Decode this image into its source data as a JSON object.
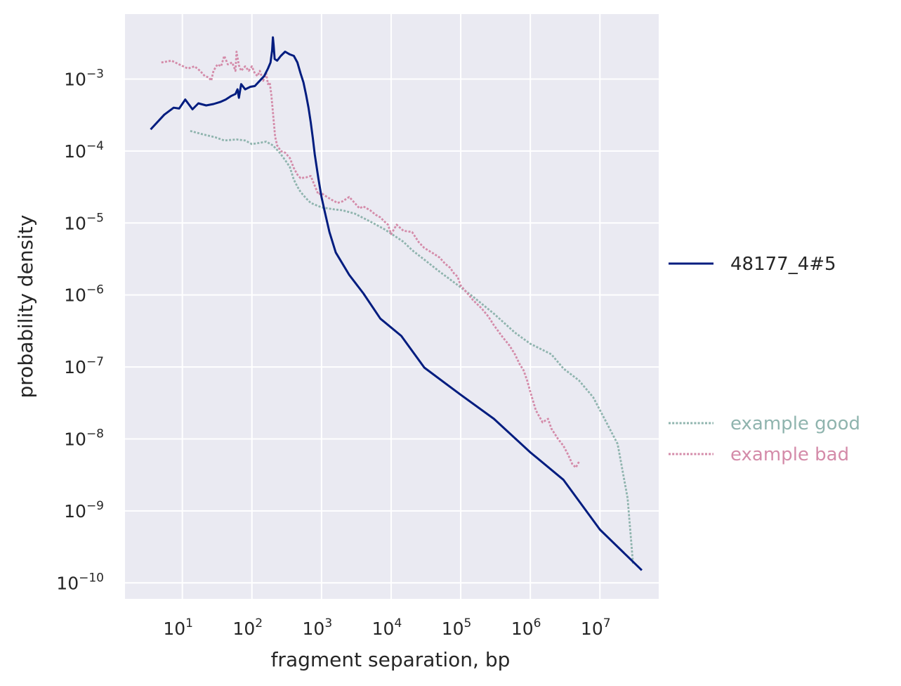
{
  "chart_data": {
    "type": "line",
    "xlabel": "fragment separation, bp",
    "ylabel": "probability density",
    "xscale": "log",
    "yscale": "log",
    "xlim": [
      1.5,
      70000000
    ],
    "ylim": [
      6e-11,
      0.008
    ],
    "grid": true,
    "x_ticks": [
      {
        "base": "10",
        "exp": "1",
        "value": 10
      },
      {
        "base": "10",
        "exp": "2",
        "value": 100
      },
      {
        "base": "10",
        "exp": "3",
        "value": 1000
      },
      {
        "base": "10",
        "exp": "4",
        "value": 10000
      },
      {
        "base": "10",
        "exp": "5",
        "value": 100000
      },
      {
        "base": "10",
        "exp": "6",
        "value": 1000000
      },
      {
        "base": "10",
        "exp": "7",
        "value": 10000000
      }
    ],
    "y_ticks": [
      {
        "base": "10",
        "exp": "−3",
        "value": 0.001
      },
      {
        "base": "10",
        "exp": "−4",
        "value": 0.0001
      },
      {
        "base": "10",
        "exp": "−5",
        "value": 1e-05
      },
      {
        "base": "10",
        "exp": "−6",
        "value": 1e-06
      },
      {
        "base": "10",
        "exp": "−7",
        "value": 1e-07
      },
      {
        "base": "10",
        "exp": "−8",
        "value": 1e-08
      },
      {
        "base": "10",
        "exp": "−9",
        "value": 1e-09
      },
      {
        "base": "10",
        "exp": "−10",
        "value": 1e-10
      }
    ],
    "legend_position": "right",
    "series": [
      {
        "name": "48177_4#5",
        "color": "#001c7f",
        "dash": "solid",
        "points": [
          [
            3.5,
            0.0002
          ],
          [
            5.5,
            0.00032
          ],
          [
            7.5,
            0.0004
          ],
          [
            9,
            0.00039
          ],
          [
            11,
            0.00052
          ],
          [
            14,
            0.00038
          ],
          [
            17,
            0.00046
          ],
          [
            22,
            0.00043
          ],
          [
            28,
            0.00045
          ],
          [
            35,
            0.00048
          ],
          [
            42,
            0.00052
          ],
          [
            50,
            0.00058
          ],
          [
            58,
            0.00062
          ],
          [
            62,
            0.00072
          ],
          [
            65,
            0.00055
          ],
          [
            70,
            0.00085
          ],
          [
            80,
            0.00072
          ],
          [
            95,
            0.00078
          ],
          [
            110,
            0.0008
          ],
          [
            130,
            0.00095
          ],
          [
            150,
            0.0011
          ],
          [
            170,
            0.0014
          ],
          [
            185,
            0.0017
          ],
          [
            195,
            0.0025
          ],
          [
            200,
            0.0038
          ],
          [
            205,
            0.003
          ],
          [
            212,
            0.0019
          ],
          [
            230,
            0.0018
          ],
          [
            260,
            0.0021
          ],
          [
            300,
            0.0024
          ],
          [
            350,
            0.0022
          ],
          [
            400,
            0.0021
          ],
          [
            450,
            0.0017
          ],
          [
            500,
            0.0012
          ],
          [
            550,
            0.0009
          ],
          [
            600,
            0.0006
          ],
          [
            650,
            0.0004
          ],
          [
            700,
            0.00025
          ],
          [
            750,
            0.00015
          ],
          [
            800,
            9e-05
          ],
          [
            900,
            4.2e-05
          ],
          [
            1000,
            2.3e-05
          ],
          [
            1100,
            1.5e-05
          ],
          [
            1300,
            7.5e-06
          ],
          [
            1600,
            3.9e-06
          ],
          [
            2500,
            1.9e-06
          ],
          [
            4000,
            1.05e-06
          ],
          [
            7000,
            4.7e-07
          ],
          [
            14000,
            2.7e-07
          ],
          [
            30000,
            9.8e-08
          ],
          [
            100000,
            4.1e-08
          ],
          [
            300000,
            1.9e-08
          ],
          [
            1000000,
            6.5e-09
          ],
          [
            3000000,
            2.7e-09
          ],
          [
            10000000,
            5.5e-10
          ],
          [
            40000000,
            1.5e-10
          ]
        ]
      },
      {
        "name": "example good",
        "color": "#8fb4ae",
        "dash": "dotted",
        "points": [
          [
            13,
            0.00019
          ],
          [
            20,
            0.00017
          ],
          [
            30,
            0.000155
          ],
          [
            40,
            0.00014
          ],
          [
            60,
            0.000145
          ],
          [
            80,
            0.00014
          ],
          [
            100,
            0.000125
          ],
          [
            130,
            0.00013
          ],
          [
            160,
            0.000135
          ],
          [
            200,
            0.00012
          ],
          [
            250,
            9.5e-05
          ],
          [
            300,
            7.5e-05
          ],
          [
            350,
            6e-05
          ],
          [
            400,
            4e-05
          ],
          [
            450,
            3.2e-05
          ],
          [
            500,
            2.7e-05
          ],
          [
            600,
            2.2e-05
          ],
          [
            700,
            1.9e-05
          ],
          [
            800,
            1.8e-05
          ],
          [
            1000,
            1.65e-05
          ],
          [
            1500,
            1.55e-05
          ],
          [
            2000,
            1.5e-05
          ],
          [
            3000,
            1.35e-05
          ],
          [
            5000,
            1.05e-05
          ],
          [
            8000,
            8.2e-06
          ],
          [
            15000,
            5.5e-06
          ],
          [
            20000,
            4.2e-06
          ],
          [
            30000,
            3.1e-06
          ],
          [
            50000,
            2.1e-06
          ],
          [
            80000,
            1.5e-06
          ],
          [
            150000,
            9.5e-07
          ],
          [
            300000,
            5.5e-07
          ],
          [
            600000,
            3e-07
          ],
          [
            1000000,
            2.1e-07
          ],
          [
            2000000,
            1.5e-07
          ],
          [
            3000000,
            9.5e-08
          ],
          [
            5000000,
            6.5e-08
          ],
          [
            8000000,
            3.8e-08
          ],
          [
            12000000,
            1.8e-08
          ],
          [
            18000000,
            8.5e-09
          ],
          [
            25000000,
            1.5e-09
          ],
          [
            30000000,
            1.8e-10
          ]
        ]
      },
      {
        "name": "example bad",
        "color": "#d48ba9",
        "dash": "dotted",
        "points": [
          [
            5,
            0.0017
          ],
          [
            7,
            0.0018
          ],
          [
            9,
            0.0016
          ],
          [
            12,
            0.0014
          ],
          [
            15,
            0.0015
          ],
          [
            18,
            0.0013
          ],
          [
            21,
            0.0011
          ],
          [
            24,
            0.00105
          ],
          [
            26,
            0.00095
          ],
          [
            28,
            0.0013
          ],
          [
            32,
            0.0016
          ],
          [
            36,
            0.0015
          ],
          [
            40,
            0.0021
          ],
          [
            45,
            0.0016
          ],
          [
            52,
            0.0017
          ],
          [
            58,
            0.0013
          ],
          [
            60,
            0.0024
          ],
          [
            65,
            0.00155
          ],
          [
            70,
            0.0013
          ],
          [
            80,
            0.0015
          ],
          [
            90,
            0.0013
          ],
          [
            100,
            0.0015
          ],
          [
            110,
            0.0012
          ],
          [
            120,
            0.0011
          ],
          [
            130,
            0.0013
          ],
          [
            145,
            0.00095
          ],
          [
            160,
            0.0012
          ],
          [
            170,
            0.00085
          ],
          [
            180,
            0.0009
          ],
          [
            190,
            0.0006
          ],
          [
            200,
            0.00035
          ],
          [
            215,
            0.00016
          ],
          [
            230,
            0.00012
          ],
          [
            260,
            0.0001
          ],
          [
            300,
            9.5e-05
          ],
          [
            350,
            8e-05
          ],
          [
            400,
            5.8e-05
          ],
          [
            450,
            4.7e-05
          ],
          [
            500,
            4.2e-05
          ],
          [
            600,
            4.3e-05
          ],
          [
            700,
            4.5e-05
          ],
          [
            800,
            3.3e-05
          ],
          [
            900,
            2.5e-05
          ],
          [
            1000,
            2.6e-05
          ],
          [
            1200,
            2.3e-05
          ],
          [
            1400,
            2.1e-05
          ],
          [
            1700,
            1.9e-05
          ],
          [
            2000,
            2e-05
          ],
          [
            2500,
            2.3e-05
          ],
          [
            3000,
            1.9e-05
          ],
          [
            3500,
            1.6e-05
          ],
          [
            4000,
            1.7e-05
          ],
          [
            5000,
            1.5e-05
          ],
          [
            6000,
            1.3e-05
          ],
          [
            7000,
            1.2e-05
          ],
          [
            8000,
            1.05e-05
          ],
          [
            9000,
            9.5e-06
          ],
          [
            10000,
            7e-06
          ],
          [
            12000,
            9.5e-06
          ],
          [
            15000,
            7.8e-06
          ],
          [
            20000,
            7.5e-06
          ],
          [
            25000,
            5.4e-06
          ],
          [
            30000,
            4.5e-06
          ],
          [
            40000,
            3.8e-06
          ],
          [
            50000,
            3.3e-06
          ],
          [
            60000,
            2.7e-06
          ],
          [
            70000,
            2.4e-06
          ],
          [
            80000,
            2e-06
          ],
          [
            90000,
            1.8e-06
          ],
          [
            100000,
            1.35e-06
          ],
          [
            120000,
            1.1e-06
          ],
          [
            150000,
            8.5e-07
          ],
          [
            200000,
            6.5e-07
          ],
          [
            250000,
            5e-07
          ],
          [
            300000,
            3.8e-07
          ],
          [
            400000,
            2.6e-07
          ],
          [
            500000,
            2e-07
          ],
          [
            600000,
            1.5e-07
          ],
          [
            700000,
            1.1e-07
          ],
          [
            800000,
            9e-08
          ],
          [
            900000,
            6.5e-08
          ],
          [
            1000000,
            4.5e-08
          ],
          [
            1200000,
            2.5e-08
          ],
          [
            1500000,
            1.7e-08
          ],
          [
            1800000,
            1.9e-08
          ],
          [
            2000000,
            1.4e-08
          ],
          [
            2500000,
            1e-08
          ],
          [
            3000000,
            8e-09
          ],
          [
            3500000,
            6e-09
          ],
          [
            4000000,
            4.5e-09
          ],
          [
            4500000,
            4e-09
          ],
          [
            5000000,
            4.8e-09
          ]
        ]
      }
    ],
    "legend": {
      "groups": [
        {
          "entries": [
            {
              "label": "48177_4#5",
              "color": "#001c7f",
              "dash": "solid",
              "text_color": "#262626"
            }
          ]
        },
        {
          "entries": [
            {
              "label": "example good",
              "color": "#8fb4ae",
              "dash": "dotted",
              "text_color": "#8fb4ae"
            },
            {
              "label": "example bad",
              "color": "#d48ba9",
              "dash": "dotted",
              "text_color": "#d48ba9"
            }
          ]
        }
      ]
    }
  }
}
